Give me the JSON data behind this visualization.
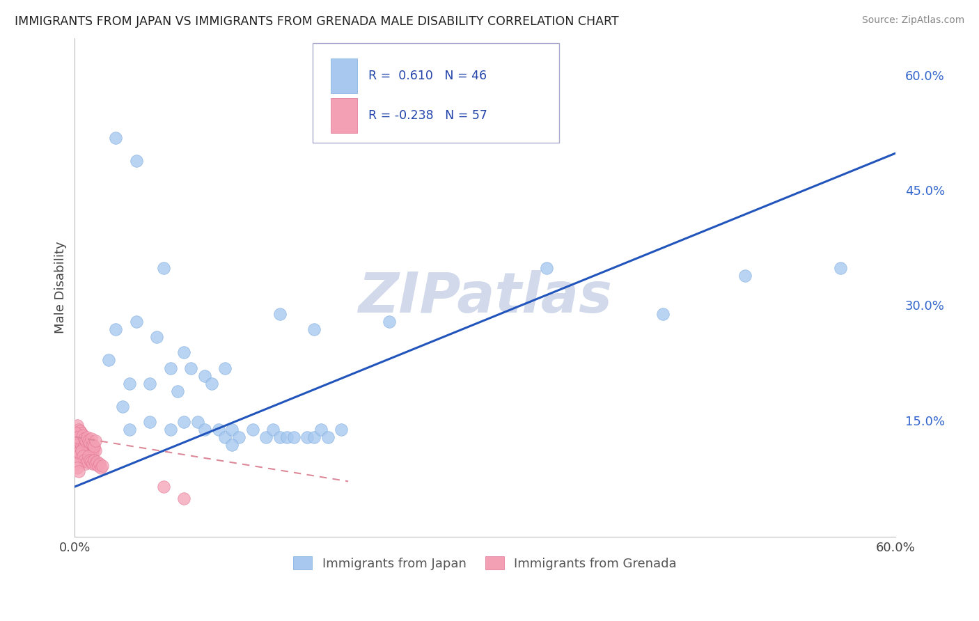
{
  "title": "IMMIGRANTS FROM JAPAN VS IMMIGRANTS FROM GRENADA MALE DISABILITY CORRELATION CHART",
  "source": "Source: ZipAtlas.com",
  "ylabel": "Male Disability",
  "japan_R": 0.61,
  "japan_N": 46,
  "grenada_R": -0.238,
  "grenada_N": 57,
  "japan_color": "#a8c8f0",
  "japan_edge_color": "#7aabdc",
  "grenada_color": "#f4a0b4",
  "grenada_edge_color": "#e07090",
  "japan_line_color": "#2255bb",
  "grenada_line_color": "#dd8899",
  "japan_points": [
    [
      0.03,
      0.52
    ],
    [
      0.045,
      0.49
    ],
    [
      0.03,
      0.27
    ],
    [
      0.06,
      0.26
    ],
    [
      0.025,
      0.23
    ],
    [
      0.04,
      0.2
    ],
    [
      0.065,
      0.35
    ],
    [
      0.08,
      0.24
    ],
    [
      0.07,
      0.22
    ],
    [
      0.055,
      0.2
    ],
    [
      0.075,
      0.19
    ],
    [
      0.085,
      0.22
    ],
    [
      0.095,
      0.21
    ],
    [
      0.1,
      0.2
    ],
    [
      0.11,
      0.22
    ],
    [
      0.055,
      0.15
    ],
    [
      0.07,
      0.14
    ],
    [
      0.08,
      0.15
    ],
    [
      0.09,
      0.15
    ],
    [
      0.095,
      0.14
    ],
    [
      0.105,
      0.14
    ],
    [
      0.11,
      0.13
    ],
    [
      0.115,
      0.14
    ],
    [
      0.12,
      0.13
    ],
    [
      0.13,
      0.14
    ],
    [
      0.14,
      0.13
    ],
    [
      0.145,
      0.14
    ],
    [
      0.15,
      0.13
    ],
    [
      0.155,
      0.13
    ],
    [
      0.16,
      0.13
    ],
    [
      0.115,
      0.12
    ],
    [
      0.17,
      0.13
    ],
    [
      0.175,
      0.13
    ],
    [
      0.18,
      0.14
    ],
    [
      0.185,
      0.13
    ],
    [
      0.195,
      0.14
    ],
    [
      0.04,
      0.14
    ],
    [
      0.035,
      0.17
    ],
    [
      0.175,
      0.27
    ],
    [
      0.23,
      0.28
    ],
    [
      0.15,
      0.29
    ],
    [
      0.045,
      0.28
    ],
    [
      0.345,
      0.35
    ],
    [
      0.49,
      0.34
    ],
    [
      0.56,
      0.35
    ],
    [
      0.43,
      0.29
    ]
  ],
  "grenada_points": [
    [
      0.0,
      0.13
    ],
    [
      0.001,
      0.125
    ],
    [
      0.002,
      0.12
    ],
    [
      0.003,
      0.128
    ],
    [
      0.004,
      0.122
    ],
    [
      0.005,
      0.118
    ],
    [
      0.006,
      0.115
    ],
    [
      0.007,
      0.12
    ],
    [
      0.008,
      0.125
    ],
    [
      0.009,
      0.118
    ],
    [
      0.01,
      0.112
    ],
    [
      0.011,
      0.115
    ],
    [
      0.012,
      0.11
    ],
    [
      0.013,
      0.108
    ],
    [
      0.014,
      0.115
    ],
    [
      0.015,
      0.112
    ],
    [
      0.001,
      0.108
    ],
    [
      0.002,
      0.105
    ],
    [
      0.003,
      0.11
    ],
    [
      0.004,
      0.108
    ],
    [
      0.005,
      0.112
    ],
    [
      0.006,
      0.105
    ],
    [
      0.007,
      0.1
    ],
    [
      0.008,
      0.095
    ],
    [
      0.009,
      0.098
    ],
    [
      0.01,
      0.105
    ],
    [
      0.011,
      0.1
    ],
    [
      0.012,
      0.098
    ],
    [
      0.013,
      0.095
    ],
    [
      0.014,
      0.1
    ],
    [
      0.015,
      0.095
    ],
    [
      0.016,
      0.098
    ],
    [
      0.017,
      0.092
    ],
    [
      0.018,
      0.095
    ],
    [
      0.019,
      0.09
    ],
    [
      0.02,
      0.092
    ],
    [
      0.002,
      0.145
    ],
    [
      0.003,
      0.14
    ],
    [
      0.004,
      0.138
    ],
    [
      0.005,
      0.135
    ],
    [
      0.001,
      0.135
    ],
    [
      0.002,
      0.13
    ],
    [
      0.006,
      0.132
    ],
    [
      0.007,
      0.128
    ],
    [
      0.008,
      0.125
    ],
    [
      0.009,
      0.13
    ],
    [
      0.01,
      0.125
    ],
    [
      0.011,
      0.122
    ],
    [
      0.012,
      0.128
    ],
    [
      0.013,
      0.12
    ],
    [
      0.014,
      0.118
    ],
    [
      0.015,
      0.125
    ],
    [
      0.001,
      0.095
    ],
    [
      0.002,
      0.09
    ],
    [
      0.003,
      0.085
    ],
    [
      0.065,
      0.065
    ],
    [
      0.08,
      0.05
    ]
  ],
  "background_color": "#ffffff",
  "grid_color": "#c8c8c8",
  "watermark_text": "ZIPatlas",
  "watermark_color": "#ccd5e8",
  "legend_japan_label": "Immigrants from Japan",
  "legend_grenada_label": "Immigrants from Grenada",
  "xlim": [
    0.0,
    0.6
  ],
  "ylim": [
    0.0,
    0.65
  ],
  "y_tick_vals": [
    0.15,
    0.3,
    0.45,
    0.6
  ],
  "y_tick_labels": [
    "15.0%",
    "30.0%",
    "45.0%",
    "60.0%"
  ],
  "x_tick_vals": [
    0.0,
    0.6
  ],
  "x_tick_labels": [
    "0.0%",
    "60.0%"
  ],
  "japan_line_x": [
    0.0,
    0.6
  ],
  "japan_line_y": [
    0.065,
    0.5
  ],
  "grenada_line_x": [
    0.0,
    0.2
  ],
  "grenada_line_y": [
    0.13,
    0.072
  ]
}
